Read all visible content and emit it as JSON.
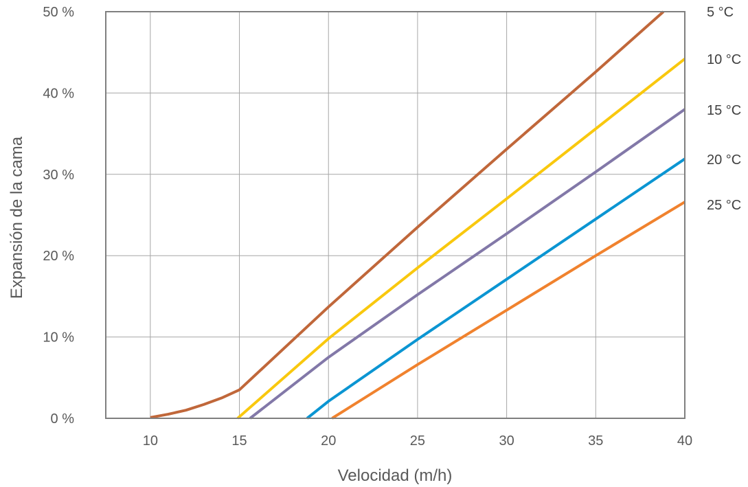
{
  "chart_data": {
    "type": "line",
    "xlabel": "Velocidad (m/h)",
    "ylabel": "Expansión de la cama",
    "xlim": [
      7.5,
      40
    ],
    "ylim": [
      0,
      50
    ],
    "x_ticks": [
      10,
      15,
      20,
      25,
      30,
      35,
      40
    ],
    "y_ticks": [
      0,
      10,
      20,
      30,
      40,
      50
    ],
    "y_tick_labels": [
      "0 %",
      "10 %",
      "20 %",
      "30 %",
      "40 %",
      "50 %"
    ],
    "grid": true,
    "legend_position": "right",
    "series": [
      {
        "name": "5 °C",
        "color": "#C0673A",
        "points": [
          [
            10,
            0.1
          ],
          [
            11,
            0.5
          ],
          [
            12,
            1.0
          ],
          [
            13,
            1.7
          ],
          [
            14,
            2.5
          ],
          [
            15,
            3.5
          ],
          [
            20,
            13.7
          ],
          [
            25,
            23.5
          ],
          [
            30,
            33.1
          ],
          [
            35,
            42.6
          ],
          [
            38.8,
            50
          ]
        ]
      },
      {
        "name": "10 °C",
        "color": "#F9C80E",
        "points": [
          [
            14.9,
            0
          ],
          [
            20,
            9.8
          ],
          [
            25,
            18.5
          ],
          [
            30,
            27.0
          ],
          [
            35,
            35.6
          ],
          [
            40,
            44.2
          ]
        ]
      },
      {
        "name": "15 °C",
        "color": "#8278A8",
        "points": [
          [
            15.6,
            0
          ],
          [
            20,
            7.5
          ],
          [
            25,
            15.2
          ],
          [
            30,
            22.7
          ],
          [
            35,
            30.3
          ],
          [
            40,
            38.0
          ]
        ]
      },
      {
        "name": "20 °C",
        "color": "#0B95D2",
        "points": [
          [
            18.8,
            0
          ],
          [
            20,
            2.1
          ],
          [
            25,
            9.7
          ],
          [
            30,
            17.1
          ],
          [
            35,
            24.5
          ],
          [
            40,
            31.9
          ]
        ]
      },
      {
        "name": "25 °C",
        "color": "#F0822E",
        "points": [
          [
            20.2,
            0
          ],
          [
            25,
            6.6
          ],
          [
            30,
            13.3
          ],
          [
            35,
            20.0
          ],
          [
            40,
            26.6
          ]
        ]
      }
    ]
  },
  "colors": {
    "frame": "#7F7F7F",
    "grid": "#A6A6A6"
  }
}
